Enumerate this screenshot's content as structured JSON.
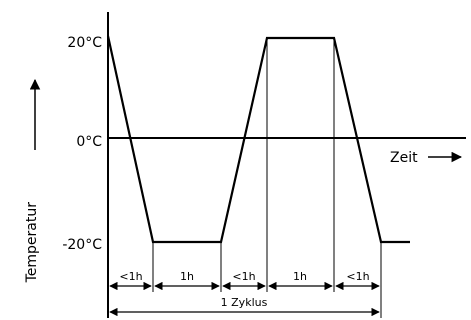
{
  "diagram": {
    "y_axis_label": "Temperatur",
    "x_axis_label": "Zeit",
    "y_ticks": [
      "20°C",
      "0°C",
      "-20°C"
    ],
    "intervals": [
      "<1h",
      "1h",
      "<1h",
      "1h",
      "<1h"
    ],
    "cycle_label": "1 Zyklus"
  }
}
